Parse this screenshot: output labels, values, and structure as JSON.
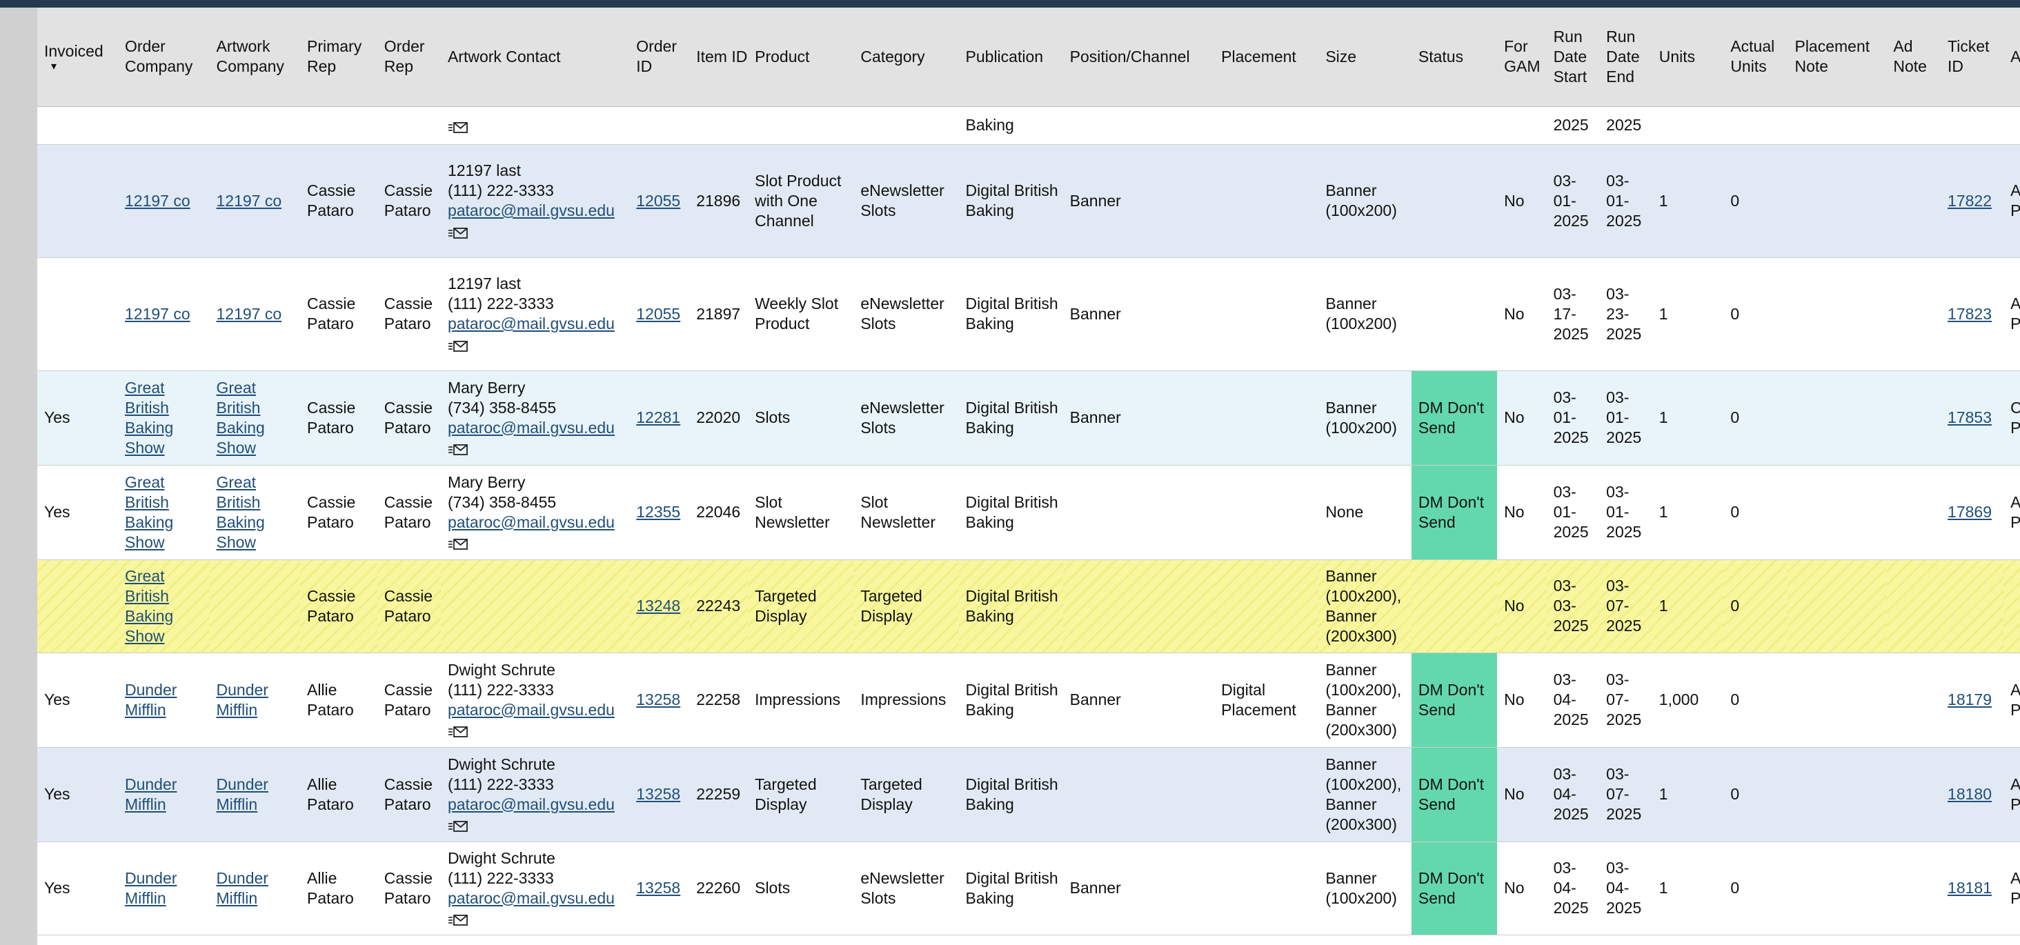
{
  "columns": [
    "Invoiced",
    "Order Company",
    "Artwork Company",
    "Primary Rep",
    "Order Rep",
    "Artwork Contact",
    "Order ID",
    "Item ID",
    "Product",
    "Category",
    "Publication",
    "Position/Channel",
    "Placement",
    "Size",
    "Status",
    "For GAM",
    "Run Date Start",
    "Run Date End",
    "Units",
    "Actual Units",
    "Placement Note",
    "Ad Note",
    "Ticket ID",
    "Assigned"
  ],
  "partial_row": {
    "publication": "Baking",
    "run_start": "2025",
    "run_end": "2025"
  },
  "rows": [
    {
      "invoiced": "",
      "order_company": "12197 co",
      "artwork_company": "12197 co",
      "primary_rep": "Cassie Pataro",
      "order_rep": "Cassie Pataro",
      "contact_name": "12197 last",
      "contact_phone": "(111) 222-3333",
      "contact_email": "pataroc@mail.gvsu.edu",
      "order_id": "12055",
      "item_id": "21896",
      "product": "Slot Product with One Channel",
      "category": "eNewsletter Slots",
      "publication": "Digital British Baking",
      "position": "Banner",
      "placement": "",
      "size": "Banner (100x200)",
      "status": "",
      "for_gam": "No",
      "run_start": "03-01-2025",
      "run_end": "03-01-2025",
      "units": "1",
      "actual_units": "0",
      "placement_note": "",
      "ad_note": "",
      "ticket_id": "17822",
      "assigned": "Allie Pataro"
    },
    {
      "invoiced": "",
      "order_company": "12197 co",
      "artwork_company": "12197 co",
      "primary_rep": "Cassie Pataro",
      "order_rep": "Cassie Pataro",
      "contact_name": "12197 last",
      "contact_phone": "(111) 222-3333",
      "contact_email": "pataroc@mail.gvsu.edu",
      "order_id": "12055",
      "item_id": "21897",
      "product": "Weekly Slot Product",
      "category": "eNewsletter Slots",
      "publication": "Digital British Baking",
      "position": "Banner",
      "placement": "",
      "size": "Banner (100x200)",
      "status": "",
      "for_gam": "No",
      "run_start": "03-17-2025",
      "run_end": "03-23-2025",
      "units": "1",
      "actual_units": "0",
      "placement_note": "",
      "ad_note": "",
      "ticket_id": "17823",
      "assigned": "Allie Pataro"
    },
    {
      "invoiced": "Yes",
      "order_company": "Great British Baking Show",
      "artwork_company": "Great British Baking Show",
      "primary_rep": "Cassie Pataro",
      "order_rep": "Cassie Pataro",
      "contact_name": "Mary Berry",
      "contact_phone": "(734) 358-8455",
      "contact_email": "pataroc@mail.gvsu.edu",
      "order_id": "12281",
      "item_id": "22020",
      "product": "Slots",
      "category": "eNewsletter Slots",
      "publication": "Digital British Baking",
      "position": "Banner",
      "placement": "",
      "size": "Banner (100x200)",
      "status": "DM Don't Send",
      "for_gam": "No",
      "run_start": "03-01-2025",
      "run_end": "03-01-2025",
      "units": "1",
      "actual_units": "0",
      "placement_note": "",
      "ad_note": "",
      "ticket_id": "17853",
      "assigned": "Cassie Pataro"
    },
    {
      "invoiced": "Yes",
      "order_company": "Great British Baking Show",
      "artwork_company": "Great British Baking Show",
      "primary_rep": "Cassie Pataro",
      "order_rep": "Cassie Pataro",
      "contact_name": "Mary Berry",
      "contact_phone": "(734) 358-8455",
      "contact_email": "pataroc@mail.gvsu.edu",
      "order_id": "12355",
      "item_id": "22046",
      "product": "Slot Newsletter",
      "category": "Slot Newsletter",
      "publication": "Digital British Baking",
      "position": "",
      "placement": "",
      "size": "None",
      "status": "DM Don't Send",
      "for_gam": "No",
      "run_start": "03-01-2025",
      "run_end": "03-01-2025",
      "units": "1",
      "actual_units": "0",
      "placement_note": "",
      "ad_note": "",
      "ticket_id": "17869",
      "assigned": "Allie Pataro"
    },
    {
      "invoiced": "",
      "order_company": "Great British Baking Show",
      "artwork_company": "",
      "primary_rep": "Cassie Pataro",
      "order_rep": "Cassie Pataro",
      "contact_name": "",
      "contact_phone": "",
      "contact_email": "",
      "order_id": "13248",
      "item_id": "22243",
      "product": "Targeted Display",
      "category": "Targeted Display",
      "publication": "Digital British Baking",
      "position": "",
      "placement": "",
      "size": "Banner (100x200), Banner (200x300)",
      "status": "",
      "for_gam": "No",
      "run_start": "03-03-2025",
      "run_end": "03-07-2025",
      "units": "1",
      "actual_units": "0",
      "placement_note": "",
      "ad_note": "",
      "ticket_id": "",
      "assigned": ""
    },
    {
      "invoiced": "Yes",
      "order_company": "Dunder Mifflin",
      "artwork_company": "Dunder Mifflin",
      "primary_rep": "Allie Pataro",
      "order_rep": "Cassie Pataro",
      "contact_name": "Dwight Schrute",
      "contact_phone": "(111) 222-3333",
      "contact_email": "pataroc@mail.gvsu.edu",
      "order_id": "13258",
      "item_id": "22258",
      "product": "Impressions",
      "category": "Impressions",
      "publication": "Digital British Baking",
      "position": "Banner",
      "placement": "Digital Placement",
      "size": "Banner (100x200), Banner (200x300)",
      "status": "DM Don't Send",
      "for_gam": "No",
      "run_start": "03-04-2025",
      "run_end": "03-07-2025",
      "units": "1,000",
      "actual_units": "0",
      "placement_note": "",
      "ad_note": "",
      "ticket_id": "18179",
      "assigned": "Allie Pataro"
    },
    {
      "invoiced": "Yes",
      "order_company": "Dunder Mifflin",
      "artwork_company": "Dunder Mifflin",
      "primary_rep": "Allie Pataro",
      "order_rep": "Cassie Pataro",
      "contact_name": "Dwight Schrute",
      "contact_phone": "(111) 222-3333",
      "contact_email": "pataroc@mail.gvsu.edu",
      "order_id": "13258",
      "item_id": "22259",
      "product": "Targeted Display",
      "category": "Targeted Display",
      "publication": "Digital British Baking",
      "position": "",
      "placement": "",
      "size": "Banner (100x200), Banner (200x300)",
      "status": "DM Don't Send",
      "for_gam": "No",
      "run_start": "03-04-2025",
      "run_end": "03-07-2025",
      "units": "1",
      "actual_units": "0",
      "placement_note": "",
      "ad_note": "",
      "ticket_id": "18180",
      "assigned": "Allie Pataro"
    },
    {
      "invoiced": "Yes",
      "order_company": "Dunder Mifflin",
      "artwork_company": "Dunder Mifflin",
      "primary_rep": "Allie Pataro",
      "order_rep": "Cassie Pataro",
      "contact_name": "Dwight Schrute",
      "contact_phone": "(111) 222-3333",
      "contact_email": "pataroc@mail.gvsu.edu",
      "order_id": "13258",
      "item_id": "22260",
      "product": "Slots",
      "category": "eNewsletter Slots",
      "publication": "Digital British Baking",
      "position": "Banner",
      "placement": "",
      "size": "Banner (100x200)",
      "status": "DM Don't Send",
      "for_gam": "No",
      "run_start": "03-04-2025",
      "run_end": "03-04-2025",
      "units": "1",
      "actual_units": "0",
      "placement_note": "",
      "ad_note": "",
      "ticket_id": "18181",
      "assigned": "Allie Pataro"
    }
  ],
  "colors": {
    "status_green": "#63d8ad",
    "header_bg": "#e2e2e2",
    "link": "#1f4e79",
    "top_bar": "#233a4f"
  }
}
